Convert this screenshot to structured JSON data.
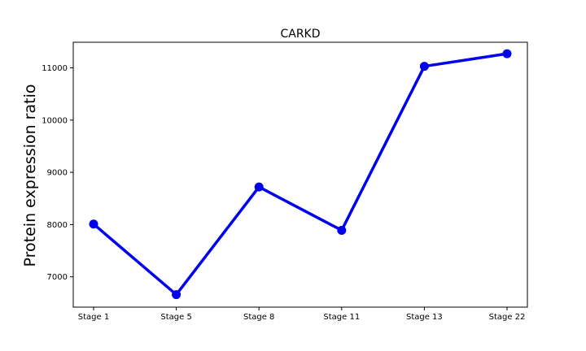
{
  "chart_data": {
    "type": "line",
    "title": "CARKD",
    "xlabel": "",
    "ylabel": "Protein expression ratio",
    "categories": [
      "Stage 1",
      "Stage 5",
      "Stage 8",
      "Stage 11",
      "Stage 13",
      "Stage 22"
    ],
    "series": [
      {
        "values": [
          8010,
          6660,
          8720,
          7890,
          11030,
          11270
        ],
        "color": "#0000ee"
      }
    ],
    "ylim": [
      6420,
      11490
    ],
    "yticks": [
      7000,
      8000,
      9000,
      10000,
      11000
    ],
    "grid": false,
    "legend": "none"
  }
}
